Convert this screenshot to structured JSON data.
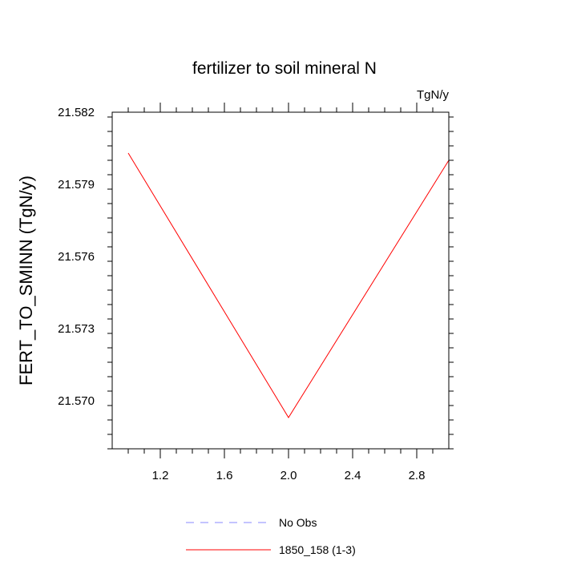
{
  "chart_data": {
    "type": "line",
    "title": "fertilizer to soil mineral N",
    "units_label": "TgN/y",
    "xlabel": "",
    "ylabel": "FERT_TO_SMINN  (TgN/y)",
    "xlim": [
      0.9,
      3.0
    ],
    "ylim": [
      21.568,
      21.582
    ],
    "x_ticks": [
      1.2,
      1.6,
      2.0,
      2.4,
      2.8
    ],
    "x_tick_labels": [
      "1.2",
      "1.6",
      "2.0",
      "2.4",
      "2.8"
    ],
    "x_minor_step": 0.1,
    "y_ticks": [
      21.57,
      21.573,
      21.576,
      21.579,
      21.582
    ],
    "y_tick_labels": [
      "21.570",
      "21.573",
      "21.576",
      "21.579",
      "21.582"
    ],
    "y_minor_step": 0.0006,
    "grid": false,
    "legend_position": "bottom-center",
    "series": [
      {
        "name": "No Obs",
        "color": "#8888ff",
        "dash": "dashed",
        "x": [],
        "y": []
      },
      {
        "name": "1850_158 (1-3)",
        "color": "#ff0000",
        "dash": "solid",
        "x": [
          1.0,
          2.0,
          3.0
        ],
        "y": [
          21.5803,
          21.5693,
          21.58
        ]
      }
    ]
  }
}
